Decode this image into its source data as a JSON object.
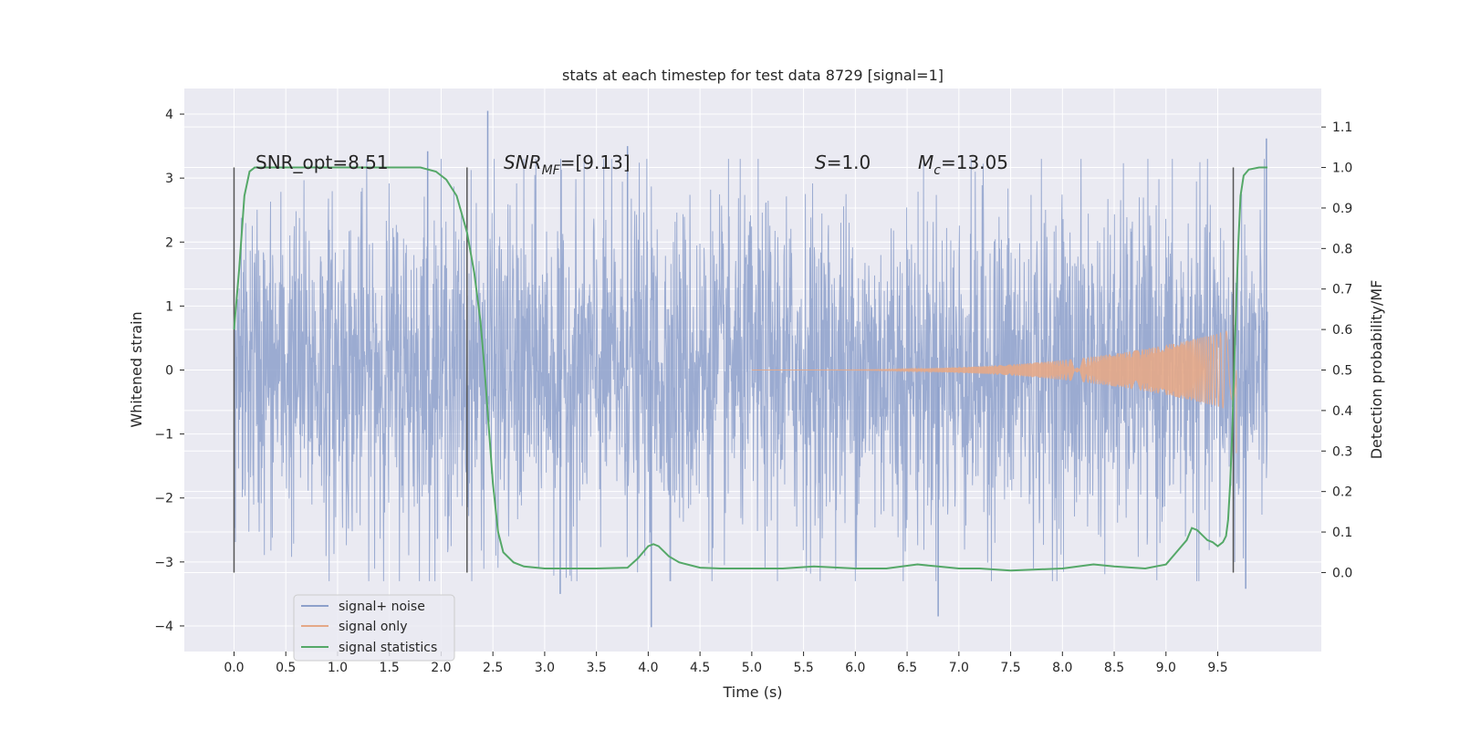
{
  "chart_data": {
    "type": "line",
    "title": "stats at each timestep for test data 8729 [signal=1]",
    "xlabel": "Time (s)",
    "ylabel": "Whitened strain",
    "y2label": "Detection probability/MF",
    "xlim": [
      -0.48,
      10.5
    ],
    "ylim": [
      -4.4,
      4.4
    ],
    "y2lim": [
      -0.195,
      1.195
    ],
    "x_ticks": [
      0.0,
      0.5,
      1.0,
      1.5,
      2.0,
      2.5,
      3.0,
      3.5,
      4.0,
      4.5,
      5.0,
      5.5,
      6.0,
      6.5,
      7.0,
      7.5,
      8.0,
      8.5,
      9.0,
      9.5
    ],
    "x_tick_labels": [
      "0.0",
      "0.5",
      "1.0",
      "1.5",
      "2.0",
      "2.5",
      "3.0",
      "3.5",
      "4.0",
      "4.5",
      "5.0",
      "5.5",
      "6.0",
      "6.5",
      "7.0",
      "7.5",
      "8.0",
      "8.5",
      "9.0",
      "9.5"
    ],
    "y_ticks": [
      -4,
      -3,
      -2,
      -1,
      0,
      1,
      2,
      3,
      4
    ],
    "y_tick_labels": [
      "−4",
      "−3",
      "−2",
      "−1",
      "0",
      "1",
      "2",
      "3",
      "4"
    ],
    "y2_ticks": [
      0.0,
      0.1,
      0.2,
      0.3,
      0.4,
      0.5,
      0.6,
      0.7,
      0.8,
      0.9,
      1.0,
      1.1
    ],
    "y2_tick_labels": [
      "0.0",
      "0.1",
      "0.2",
      "0.3",
      "0.4",
      "0.5",
      "0.6",
      "0.7",
      "0.8",
      "0.9",
      "1.0",
      "1.1"
    ],
    "grid": true,
    "legend_position": "lower-left",
    "legend": [
      {
        "label": "signal+ noise",
        "color": "#8da0cb"
      },
      {
        "label": "signal only",
        "color": "#e5a887"
      },
      {
        "label": "signal statistics",
        "color": "#55a868"
      }
    ],
    "annotations": {
      "snr_opt": "SNR_opt=8.51",
      "snr_mf_base": "SNR",
      "snr_mf_sub": "MF",
      "snr_mf_value": "=[9.13]",
      "s_base": "S",
      "s_value": "=1.0",
      "mc_base": "M",
      "mc_sub": "c",
      "mc_value": "=13.05"
    },
    "vertical_markers": [
      0.0,
      2.25,
      9.65
    ],
    "series": [
      {
        "name": "signal+ noise",
        "axis": "left",
        "color": "#8da0cb",
        "style": "noise",
        "x_range": [
          0.0,
          9.98
        ],
        "envelope": 1.3,
        "notable_peaks": [
          {
            "x": 2.45,
            "y": 4.05
          },
          {
            "x": 4.03,
            "y": -4.02
          },
          {
            "x": 9.97,
            "y": 3.62
          },
          {
            "x": 9.77,
            "y": -3.42
          },
          {
            "x": 6.8,
            "y": -3.85
          },
          {
            "x": 3.8,
            "y": 3.5
          },
          {
            "x": 1.87,
            "y": 3.42
          },
          {
            "x": 3.15,
            "y": -3.5
          }
        ]
      },
      {
        "name": "signal only",
        "axis": "left",
        "color": "#e5a887",
        "style": "chirp",
        "x_range": [
          5.0,
          9.68
        ],
        "max_amplitude": 0.65
      },
      {
        "name": "signal statistics",
        "axis": "right",
        "color": "#55a868",
        "x": [
          0.0,
          0.05,
          0.1,
          0.15,
          0.2,
          0.3,
          0.5,
          1.0,
          1.5,
          1.8,
          1.95,
          2.05,
          2.15,
          2.25,
          2.32,
          2.38,
          2.42,
          2.46,
          2.5,
          2.55,
          2.6,
          2.7,
          2.8,
          3.0,
          3.3,
          3.5,
          3.8,
          3.9,
          4.0,
          4.05,
          4.1,
          4.2,
          4.3,
          4.5,
          4.7,
          5.0,
          5.3,
          5.6,
          6.0,
          6.3,
          6.6,
          6.8,
          7.0,
          7.2,
          7.5,
          8.0,
          8.3,
          8.5,
          8.8,
          9.0,
          9.1,
          9.2,
          9.25,
          9.3,
          9.4,
          9.45,
          9.5,
          9.55,
          9.58,
          9.6,
          9.62,
          9.64,
          9.66,
          9.68,
          9.7,
          9.72,
          9.75,
          9.8,
          9.9,
          9.98
        ],
        "y": [
          0.6,
          0.75,
          0.93,
          0.99,
          1.0,
          1.0,
          1.0,
          1.0,
          1.0,
          1.0,
          0.99,
          0.97,
          0.93,
          0.84,
          0.74,
          0.62,
          0.5,
          0.36,
          0.22,
          0.1,
          0.05,
          0.025,
          0.015,
          0.01,
          0.01,
          0.01,
          0.012,
          0.035,
          0.065,
          0.07,
          0.065,
          0.04,
          0.025,
          0.012,
          0.01,
          0.01,
          0.01,
          0.015,
          0.01,
          0.01,
          0.02,
          0.015,
          0.01,
          0.01,
          0.005,
          0.01,
          0.02,
          0.015,
          0.01,
          0.02,
          0.05,
          0.08,
          0.11,
          0.105,
          0.08,
          0.075,
          0.065,
          0.075,
          0.09,
          0.13,
          0.22,
          0.35,
          0.52,
          0.68,
          0.82,
          0.93,
          0.98,
          0.995,
          1.0,
          1.0
        ]
      }
    ]
  }
}
